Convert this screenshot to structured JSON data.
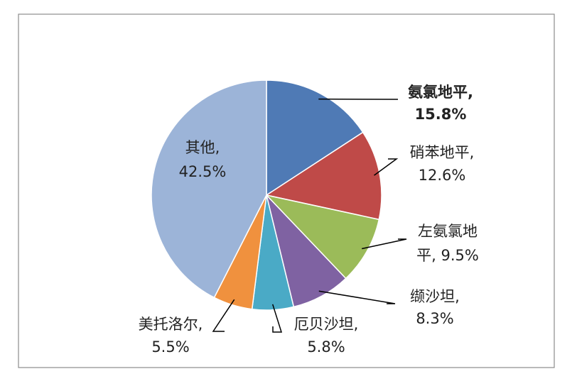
{
  "chart_data": {
    "type": "pie",
    "slices": [
      {
        "name": "氨氯地平",
        "label": "氨氯地平,",
        "value": 15.8,
        "value_label": "15.8%",
        "color": "#4f7ab5",
        "label_lines": [
          "氨氯地平,",
          "15.8%"
        ]
      },
      {
        "name": "硝苯地平",
        "label": "硝苯地平,",
        "value": 12.6,
        "value_label": "12.6%",
        "color": "#bf4a48",
        "label_lines": [
          "硝苯地平,",
          "12.6%"
        ]
      },
      {
        "name": "左氨氯地平",
        "label": "左氨氯地平,",
        "value": 9.5,
        "value_label": "9.5%",
        "color": "#9bbb59",
        "label_lines": [
          "左氨氯地",
          "平, 9.5%"
        ]
      },
      {
        "name": "缬沙坦",
        "label": "缬沙坦,",
        "value": 8.3,
        "value_label": "8.3%",
        "color": "#7f62a2",
        "label_lines": [
          "缬沙坦,",
          "8.3%"
        ]
      },
      {
        "name": "厄贝沙坦",
        "label": "厄贝沙坦,",
        "value": 5.8,
        "value_label": "5.8%",
        "color": "#4aaac6",
        "label_lines": [
          "厄贝沙坦,",
          "5.8%"
        ]
      },
      {
        "name": "美托洛尔",
        "label": "美托洛尔,",
        "value": 5.5,
        "value_label": "5.5%",
        "color": "#f0913e",
        "label_lines": [
          "美托洛尔,",
          "5.5%"
        ]
      },
      {
        "name": "其他",
        "label": "其他,",
        "value": 42.5,
        "value_label": "42.5%",
        "color": "#9cb4d8",
        "label_lines": [
          "其他,",
          "42.5%"
        ]
      }
    ],
    "legend": "none"
  }
}
